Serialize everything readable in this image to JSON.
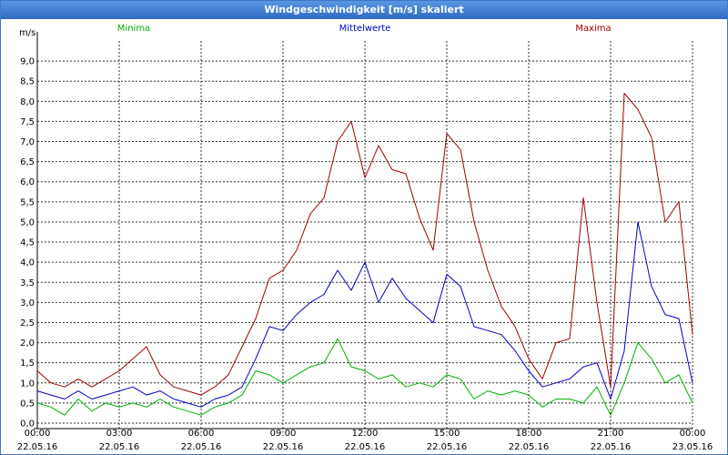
{
  "window": {
    "title": "Windgeschwindigkeit [m/s] skaliert"
  },
  "colors": {
    "minima": "#00b000",
    "mittelwerte": "#0000c8",
    "maxima": "#a00000",
    "grid": "#000000"
  },
  "chart_data": {
    "type": "line",
    "title": "Windgeschwindigkeit [m/s] skaliert",
    "ylabel": "m/s",
    "xlabel": "",
    "ylim": [
      0,
      9.5
    ],
    "yticks": [
      "0,0",
      "0,5",
      "1,0",
      "1,5",
      "2,0",
      "2,5",
      "3,0",
      "3,5",
      "4,0",
      "4,5",
      "5,0",
      "5,5",
      "6,0",
      "6,5",
      "7,0",
      "7,5",
      "8,0",
      "8,5",
      "9,0"
    ],
    "xlim_hours": [
      0,
      24
    ],
    "xticks": [
      {
        "time": "00:00",
        "date": "22.05.16"
      },
      {
        "time": "03:00",
        "date": "22.05.16"
      },
      {
        "time": "06:00",
        "date": "22.05.16"
      },
      {
        "time": "09:00",
        "date": "22.05.16"
      },
      {
        "time": "12:00",
        "date": "22.05.16"
      },
      {
        "time": "15:00",
        "date": "22.05.16"
      },
      {
        "time": "18:00",
        "date": "22.05.16"
      },
      {
        "time": "21:00",
        "date": "22.05.16"
      },
      {
        "time": "00:00",
        "date": "23.05.16"
      }
    ],
    "legend": [
      {
        "name": "Minima",
        "position": "left"
      },
      {
        "name": "Mittelwerte",
        "position": "center"
      },
      {
        "name": "Maxima",
        "position": "right"
      }
    ],
    "series": [
      {
        "name": "Minima",
        "x": [
          0,
          0.5,
          1,
          1.5,
          2,
          2.5,
          3,
          3.5,
          4,
          4.5,
          5,
          5.5,
          6,
          6.5,
          7,
          7.5,
          8,
          8.5,
          9,
          9.5,
          10,
          10.5,
          11,
          11.5,
          12,
          12.5,
          13,
          13.5,
          14,
          14.5,
          15,
          15.5,
          16,
          16.5,
          17,
          17.5,
          18,
          18.5,
          19,
          19.5,
          20,
          20.5,
          21,
          21.5,
          22,
          22.5,
          23,
          23.5,
          24
        ],
        "values": [
          0.5,
          0.4,
          0.2,
          0.6,
          0.3,
          0.5,
          0.4,
          0.5,
          0.4,
          0.6,
          0.4,
          0.3,
          0.2,
          0.4,
          0.5,
          0.7,
          1.3,
          1.2,
          1.0,
          1.2,
          1.4,
          1.5,
          2.1,
          1.4,
          1.3,
          1.1,
          1.2,
          0.9,
          1.0,
          0.9,
          1.2,
          1.1,
          0.6,
          0.8,
          0.7,
          0.8,
          0.7,
          0.4,
          0.6,
          0.6,
          0.5,
          0.9,
          0.2,
          1.0,
          2.0,
          1.6,
          1.0,
          1.2,
          0.5
        ]
      },
      {
        "name": "Mittelwerte",
        "x": [
          0,
          0.5,
          1,
          1.5,
          2,
          2.5,
          3,
          3.5,
          4,
          4.5,
          5,
          5.5,
          6,
          6.5,
          7,
          7.5,
          8,
          8.5,
          9,
          9.5,
          10,
          10.5,
          11,
          11.5,
          12,
          12.5,
          13,
          13.5,
          14,
          14.5,
          15,
          15.5,
          16,
          16.5,
          17,
          17.5,
          18,
          18.5,
          19,
          19.5,
          20,
          20.5,
          21,
          21.5,
          22,
          22.5,
          23,
          23.5,
          24
        ],
        "values": [
          0.8,
          0.7,
          0.6,
          0.8,
          0.6,
          0.7,
          0.8,
          0.9,
          0.7,
          0.8,
          0.6,
          0.5,
          0.4,
          0.6,
          0.7,
          0.9,
          1.6,
          2.4,
          2.3,
          2.7,
          3.0,
          3.2,
          3.8,
          3.3,
          4.0,
          3.0,
          3.6,
          3.1,
          2.8,
          2.5,
          3.7,
          3.4,
          2.4,
          2.3,
          2.2,
          1.8,
          1.3,
          0.9,
          1.0,
          1.1,
          1.4,
          1.5,
          0.6,
          1.8,
          5.0,
          3.4,
          2.7,
          2.6,
          1.0
        ]
      },
      {
        "name": "Maxima",
        "x": [
          0,
          0.5,
          1,
          1.5,
          2,
          2.5,
          3,
          3.5,
          4,
          4.5,
          5,
          5.5,
          6,
          6.5,
          7,
          7.5,
          8,
          8.5,
          9,
          9.5,
          10,
          10.5,
          11,
          11.5,
          12,
          12.5,
          13,
          13.5,
          14,
          14.5,
          15,
          15.5,
          16,
          16.5,
          17,
          17.5,
          18,
          18.5,
          19,
          19.5,
          20,
          20.5,
          21,
          21.5,
          22,
          22.5,
          23,
          23.5,
          24
        ],
        "values": [
          1.3,
          1.0,
          0.9,
          1.1,
          0.9,
          1.1,
          1.3,
          1.6,
          1.9,
          1.2,
          0.9,
          0.8,
          0.7,
          0.9,
          1.2,
          1.9,
          2.6,
          3.6,
          3.8,
          4.3,
          5.2,
          5.6,
          7.0,
          7.5,
          6.1,
          6.9,
          6.3,
          6.2,
          5.1,
          4.3,
          7.2,
          6.8,
          5.0,
          3.8,
          2.9,
          2.4,
          1.6,
          1.1,
          2.0,
          2.1,
          5.6,
          3.0,
          0.9,
          8.2,
          7.8,
          7.1,
          5.0,
          5.5,
          2.2
        ]
      }
    ]
  }
}
